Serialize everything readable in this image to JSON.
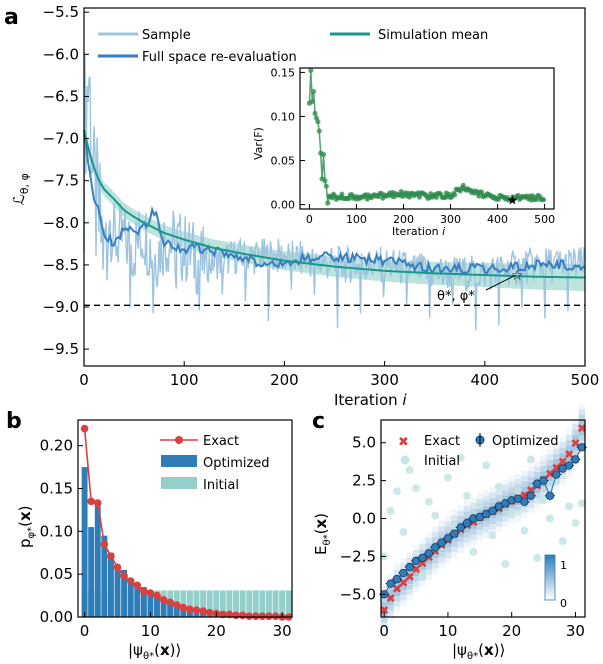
{
  "colors": {
    "sample": "#9dc4e0",
    "full_space": "#3a7fbd",
    "sim_mean": "#17998a",
    "sim_band": "#8fd2c6",
    "inset_green": "#2e8b4c",
    "exact_red": "#d94040",
    "optimized_blue": "#2f7db8",
    "initial_teal": "#95cfcb"
  },
  "chart_data": [
    {
      "panel": "a",
      "type": "line",
      "xlabel": "Iteration i",
      "ylabel": "L_{θ,φ}",
      "xlim": [
        0,
        500
      ],
      "ylim": [
        -9.7,
        -5.45
      ],
      "xticks": [
        "0",
        "100",
        "200",
        "300",
        "400",
        "500"
      ],
      "yticks": [
        "−5.5",
        "−6.0",
        "−6.5",
        "−7.0",
        "−7.5",
        "−8.0",
        "−8.5",
        "−9.0",
        "−9.5"
      ],
      "legend": [
        "Sample",
        "Full space re-evaluation",
        "Simulation mean"
      ],
      "reference_line": -8.98,
      "annotation": "θ*, φ*",
      "star_point": [
        432,
        -8.62
      ],
      "series": [
        {
          "name": "Sample",
          "x": [
            0,
            5,
            10,
            15,
            20,
            25,
            30,
            40,
            50,
            60,
            70,
            80,
            100,
            120,
            150,
            200,
            250,
            300,
            350,
            400,
            450,
            500
          ],
          "values": [
            -6.9,
            -6.2,
            -7.7,
            -8.0,
            -8.3,
            -7.9,
            -8.2,
            -8.2,
            -8.3,
            -8.1,
            -8.4,
            -8.2,
            -8.3,
            -8.5,
            -8.4,
            -8.4,
            -8.5,
            -8.5,
            -8.6,
            -8.6,
            -8.5,
            -8.5
          ]
        },
        {
          "name": "Full space re-evaluation",
          "x": [
            0,
            5,
            10,
            15,
            20,
            25,
            30,
            35,
            40,
            50,
            60,
            70,
            80,
            100,
            120,
            150,
            180,
            200,
            250,
            300,
            350,
            400,
            450,
            500
          ],
          "values": [
            -6.9,
            -7.4,
            -7.7,
            -7.9,
            -8.15,
            -8.2,
            -8.25,
            -8.2,
            -8.05,
            -8.1,
            -8.05,
            -7.85,
            -8.25,
            -8.3,
            -8.3,
            -8.4,
            -8.5,
            -8.45,
            -8.4,
            -8.45,
            -8.55,
            -8.55,
            -8.5,
            -8.5
          ]
        },
        {
          "name": "Simulation mean",
          "x": [
            0,
            5,
            10,
            15,
            20,
            30,
            40,
            50,
            60,
            80,
            100,
            130,
            160,
            200,
            250,
            300,
            350,
            400,
            450,
            500
          ],
          "values": [
            -6.9,
            -7.15,
            -7.35,
            -7.5,
            -7.6,
            -7.72,
            -7.85,
            -7.93,
            -8.0,
            -8.12,
            -8.2,
            -8.3,
            -8.37,
            -8.45,
            -8.52,
            -8.57,
            -8.6,
            -8.62,
            -8.64,
            -8.65
          ]
        }
      ]
    },
    {
      "panel": "a-inset",
      "type": "scatter",
      "xlabel": "Iteration i",
      "ylabel": "Var(F)",
      "xlim": [
        -20,
        520
      ],
      "ylim": [
        -0.005,
        0.155
      ],
      "xticks": [
        "0",
        "100",
        "200",
        "300",
        "400",
        "500"
      ],
      "yticks": [
        "0.00",
        "0.05",
        "0.10",
        "0.15"
      ],
      "star_point": [
        432,
        0.006
      ],
      "series": [
        {
          "name": "",
          "x": [
            0,
            3,
            6,
            9,
            12,
            15,
            18,
            21,
            24,
            27,
            30,
            33,
            36,
            40,
            45,
            50,
            60,
            70,
            80,
            100,
            150,
            200,
            250,
            300,
            330,
            350,
            380,
            400,
            432,
            450,
            500
          ],
          "values": [
            0.13,
            0.15,
            0.12,
            0.14,
            0.11,
            0.09,
            0.1,
            0.07,
            0.05,
            0.03,
            0.07,
            0.02,
            0.015,
            0.012,
            0.01,
            0.01,
            0.008,
            0.009,
            0.01,
            0.007,
            0.01,
            0.012,
            0.01,
            0.011,
            0.02,
            0.013,
            0.01,
            0.008,
            0.006,
            0.009,
            0.007
          ]
        }
      ]
    },
    {
      "panel": "b",
      "type": "bar",
      "xlabel": "|ψ_{θ*}(x)⟩",
      "ylabel": "p_{φ*}(x)",
      "xlim": [
        -1,
        31.5
      ],
      "ylim": [
        0,
        0.23
      ],
      "xticks": [
        "0",
        "10",
        "20",
        "30"
      ],
      "yticks": [
        "0.00",
        "0.05",
        "0.10",
        "0.15",
        "0.20"
      ],
      "legend": [
        "Exact",
        "Optimized",
        "Initial"
      ],
      "series": [
        {
          "name": "Exact",
          "x": [
            0,
            1,
            2,
            3,
            4,
            5,
            6,
            7,
            8,
            9,
            10,
            11,
            12,
            13,
            14,
            15,
            16,
            17,
            18,
            19,
            20,
            21,
            22,
            23,
            24,
            25,
            26,
            27,
            28,
            29,
            30,
            31
          ],
          "values": [
            0.22,
            0.135,
            0.133,
            0.085,
            0.071,
            0.058,
            0.048,
            0.042,
            0.037,
            0.03,
            0.028,
            0.025,
            0.02,
            0.017,
            0.014,
            0.011,
            0.009,
            0.008,
            0.007,
            0.005,
            0.004,
            0.003,
            0.003,
            0.002,
            0.002,
            0.001,
            0.001,
            0.001,
            0.001,
            0.001,
            0.0,
            0.0
          ]
        },
        {
          "name": "Optimized",
          "x": [
            0,
            1,
            2,
            3,
            4,
            5,
            6,
            7,
            8,
            9,
            10,
            11,
            12,
            13,
            14,
            15,
            16,
            17,
            18,
            19,
            20,
            21,
            22,
            23,
            24,
            25,
            26,
            27,
            28,
            29,
            30,
            31
          ],
          "values": [
            0.175,
            0.105,
            0.13,
            0.095,
            0.075,
            0.06,
            0.055,
            0.045,
            0.04,
            0.035,
            0.03,
            0.028,
            0.022,
            0.02,
            0.017,
            0.014,
            0.012,
            0.01,
            0.009,
            0.008,
            0.007,
            0.006,
            0.005,
            0.004,
            0.003,
            0.003,
            0.002,
            0.002,
            0.002,
            0.001,
            0.001,
            0.001
          ]
        },
        {
          "name": "Initial",
          "x": [
            0,
            1,
            2,
            3,
            4,
            5,
            6,
            7,
            8,
            9,
            10,
            11,
            12,
            13,
            14,
            15,
            16,
            17,
            18,
            19,
            20,
            21,
            22,
            23,
            24,
            25,
            26,
            27,
            28,
            29,
            30,
            31
          ],
          "values": [
            0.031,
            0.031,
            0.031,
            0.031,
            0.031,
            0.031,
            0.031,
            0.031,
            0.031,
            0.031,
            0.031,
            0.031,
            0.031,
            0.031,
            0.031,
            0.031,
            0.031,
            0.031,
            0.031,
            0.031,
            0.031,
            0.031,
            0.031,
            0.031,
            0.031,
            0.031,
            0.031,
            0.031,
            0.031,
            0.031,
            0.031,
            0.031
          ]
        }
      ]
    },
    {
      "panel": "c",
      "type": "scatter",
      "xlabel": "|ψ_{θ*}(x)⟩",
      "ylabel": "E_{θ*}(x)",
      "xlim": [
        -0.5,
        31.5
      ],
      "ylim": [
        -6.5,
        6.5
      ],
      "xticks": [
        "0",
        "10",
        "20",
        "30"
      ],
      "yticks": [
        "5.0",
        "2.5",
        "0.0",
        "−2.5",
        "−5.0"
      ],
      "legend": [
        "Exact",
        "Optimized",
        "Initial"
      ],
      "colorbar": {
        "min": "0",
        "max": "1"
      },
      "series": [
        {
          "name": "Exact",
          "x": [
            0,
            1,
            2,
            3,
            4,
            5,
            6,
            7,
            8,
            9,
            10,
            11,
            12,
            13,
            14,
            15,
            16,
            17,
            18,
            19,
            20,
            21,
            22,
            23,
            24,
            25,
            26,
            27,
            28,
            29,
            30,
            31
          ],
          "values": [
            -6.0,
            -5.2,
            -4.6,
            -4.2,
            -3.8,
            -3.3,
            -2.9,
            -2.5,
            -2.1,
            -1.7,
            -1.4,
            -1.0,
            -0.7,
            -0.4,
            -0.2,
            0.1,
            0.3,
            0.5,
            0.7,
            1.0,
            1.2,
            1.4,
            1.6,
            1.9,
            2.2,
            2.6,
            3.0,
            3.4,
            3.8,
            4.3,
            5.0,
            6.0
          ]
        },
        {
          "name": "Optimized",
          "x": [
            0,
            1,
            2,
            3,
            4,
            5,
            6,
            7,
            8,
            9,
            10,
            11,
            12,
            13,
            14,
            15,
            16,
            17,
            18,
            19,
            20,
            21,
            22,
            23,
            24,
            25,
            26,
            27,
            28,
            29,
            30,
            31
          ],
          "values": [
            -5.0,
            -4.3,
            -4.0,
            -3.6,
            -3.2,
            -2.8,
            -2.6,
            -2.3,
            -1.9,
            -1.6,
            -1.3,
            -1.0,
            -0.6,
            -0.3,
            0.0,
            0.1,
            0.3,
            0.5,
            0.8,
            1.0,
            1.2,
            1.3,
            1.1,
            1.5,
            2.3,
            2.5,
            1.5,
            2.9,
            3.3,
            3.5,
            3.9,
            4.7
          ]
        },
        {
          "name": "Initial",
          "x": [
            0,
            1,
            2,
            3,
            4,
            5,
            6,
            7,
            8,
            9,
            10,
            11,
            12,
            13,
            14,
            15,
            16,
            17,
            18,
            19,
            20,
            21,
            22,
            23,
            24,
            25,
            26,
            27,
            28,
            29,
            30,
            31
          ],
          "values": [
            -2.5,
            0.5,
            1.8,
            -0.9,
            3.2,
            2.0,
            -3.8,
            1.1,
            0.2,
            -1.9,
            2.7,
            -0.5,
            4.0,
            1.5,
            -2.2,
            0.9,
            3.5,
            -1.1,
            2.1,
            -3.0,
            0.4,
            1.8,
            -0.8,
            3.9,
            -2.6,
            1.2,
            0.0,
            2.5,
            -1.5,
            0.8,
            -0.3,
            1.0
          ]
        }
      ]
    }
  ]
}
